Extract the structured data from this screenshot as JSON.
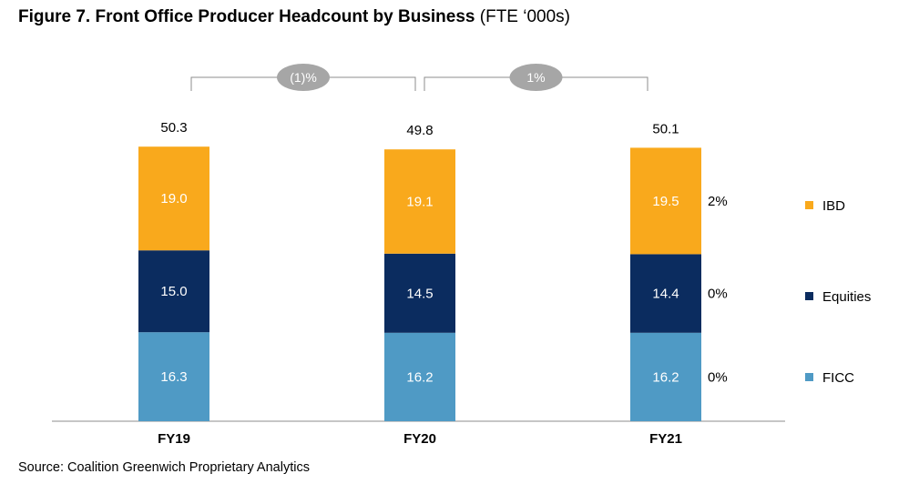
{
  "figure": {
    "title": "Figure 7. Front Office Producer Headcount by Business",
    "title_suffix": "(FTE ‘000s)",
    "source": "Source: Coalition Greenwich Proprietary Analytics"
  },
  "chart_data": {
    "type": "bar",
    "stacked": true,
    "categories": [
      "FY19",
      "FY20",
      "FY21"
    ],
    "series": [
      {
        "name": "FICC",
        "values": [
          16.3,
          16.2,
          16.2
        ],
        "color": "#4f9ac5",
        "change": "0%"
      },
      {
        "name": "Equities",
        "values": [
          15.0,
          14.5,
          14.4
        ],
        "color": "#0b2c5f",
        "change": "0%"
      },
      {
        "name": "IBD",
        "values": [
          19.0,
          19.1,
          19.5
        ],
        "color": "#f9a91c",
        "change": "2%"
      }
    ],
    "totals": [
      "50.3",
      "49.8",
      "50.1"
    ],
    "segment_labels": [
      [
        "16.3",
        "16.2",
        "16.2"
      ],
      [
        "15.0",
        "14.5",
        "14.4"
      ],
      [
        "19.0",
        "19.1",
        "19.5"
      ]
    ],
    "growth_brackets": [
      {
        "from": "FY19",
        "to": "FY20",
        "label": "(1)%"
      },
      {
        "from": "FY20",
        "to": "FY21",
        "label": "1%"
      }
    ],
    "legend_position": "right",
    "grid": false
  }
}
